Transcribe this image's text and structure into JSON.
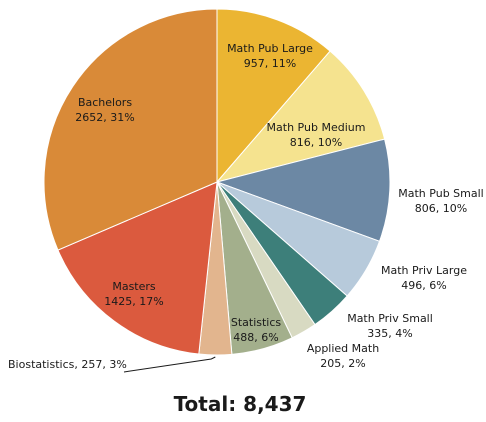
{
  "chart_data": {
    "type": "pie",
    "title": "Total: 8,437",
    "slices": [
      {
        "name": "Math Pub Large",
        "value": 957,
        "percent": "11%",
        "color": "#EBB532",
        "label_lines": [
          "Math Pub Large",
          "957, 11%"
        ]
      },
      {
        "name": "Math Pub Medium",
        "value": 816,
        "percent": "10%",
        "color": "#F5E38F",
        "label_lines": [
          "Math Pub Medium",
          "816, 10%"
        ]
      },
      {
        "name": "Math Pub Small",
        "value": 806,
        "percent": "10%",
        "color": "#6C88A4",
        "label_lines": [
          "Math Pub Small",
          "806, 10%"
        ]
      },
      {
        "name": "Math Priv Large",
        "value": 496,
        "percent": "6%",
        "color": "#B7CADB",
        "label_lines": [
          "Math Priv Large",
          "496, 6%"
        ]
      },
      {
        "name": "Math Priv Small",
        "value": 335,
        "percent": "4%",
        "color": "#3D7F7A",
        "label_lines": [
          "Math Priv Small",
          "335, 4%"
        ]
      },
      {
        "name": "Applied Math",
        "value": 205,
        "percent": "2%",
        "color": "#D8DAC2",
        "label_lines": [
          "Applied Math",
          "205, 2%"
        ]
      },
      {
        "name": "Statistics",
        "value": 488,
        "percent": "6%",
        "color": "#A3AF8C",
        "label_lines": [
          "Statistics",
          "488, 6%"
        ]
      },
      {
        "name": "Biostatistics",
        "value": 257,
        "percent": "3%",
        "color": "#E2B58E",
        "label_lines": [
          "Biostatistics, 257, 3%"
        ]
      },
      {
        "name": "Masters",
        "value": 1425,
        "percent": "17%",
        "color": "#DB5A3E",
        "label_lines": [
          "Masters",
          "1425, 17%"
        ]
      },
      {
        "name": "Bachelors",
        "value": 2652,
        "percent": "31%",
        "color": "#D98A38",
        "label_lines": [
          "Bachelors",
          "2652, 31%"
        ]
      }
    ]
  }
}
